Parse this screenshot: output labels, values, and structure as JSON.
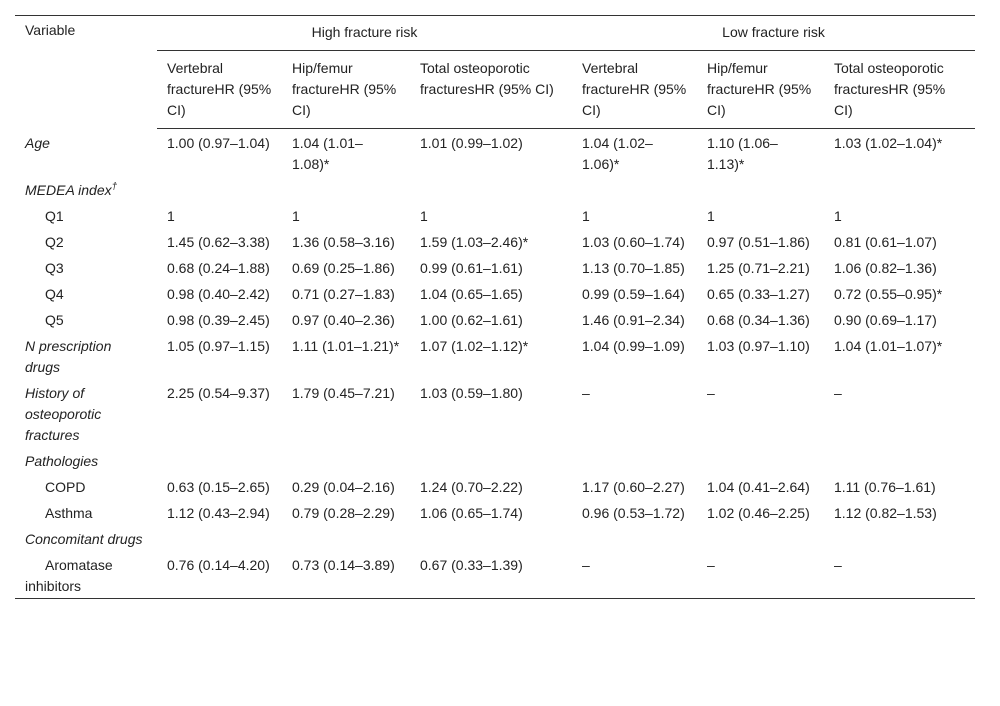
{
  "table": {
    "variable_header": "Variable",
    "groups": [
      "High fracture risk",
      "Low fracture risk"
    ],
    "subheaders": [
      "Vertebral fractureHR (95% CI)",
      "Hip/femur fractureHR (95% CI)",
      "Total osteoporotic fracturesHR (95% CI)",
      "Vertebral fractureHR (95% CI)",
      "Hip/femur fractureHR (95% CI)",
      "Total osteoporotic fracturesHR (95% CI)"
    ],
    "sections": [
      {
        "label": "Age",
        "values": [
          "1.00 (0.97–1.04)",
          "1.04 (1.01–1.08)*",
          "1.01 (0.99–1.02)",
          "1.04 (1.02–1.06)*",
          "1.10 (1.06–1.13)*",
          "1.03 (1.02–1.04)*"
        ]
      },
      {
        "label": "MEDEA index",
        "label_sup": "†",
        "rows": [
          {
            "label": "Q1",
            "values": [
              "1",
              "1",
              "1",
              "1",
              "1",
              "1"
            ]
          },
          {
            "label": "Q2",
            "values": [
              "1.45 (0.62–3.38)",
              "1.36 (0.58–3.16)",
              "1.59 (1.03–2.46)*",
              "1.03 (0.60–1.74)",
              "0.97 (0.51–1.86)",
              "0.81 (0.61–1.07)"
            ]
          },
          {
            "label": "Q3",
            "values": [
              "0.68 (0.24–1.88)",
              "0.69 (0.25–1.86)",
              "0.99 (0.61–1.61)",
              "1.13 (0.70–1.85)",
              "1.25 (0.71–2.21)",
              "1.06 (0.82–1.36)"
            ]
          },
          {
            "label": "Q4",
            "values": [
              "0.98 (0.40–2.42)",
              "0.71 (0.27–1.83)",
              "1.04 (0.65–1.65)",
              "0.99 (0.59–1.64)",
              "0.65 (0.33–1.27)",
              "0.72 (0.55–0.95)*"
            ]
          },
          {
            "label": "Q5",
            "values": [
              "0.98 (0.39–2.45)",
              "0.97 (0.40–2.36)",
              "1.00 (0.62–1.61)",
              "1.46 (0.91–2.34)",
              "0.68 (0.34–1.36)",
              "0.90 (0.69–1.17)"
            ]
          }
        ]
      },
      {
        "label": "N prescription drugs",
        "values": [
          "1.05 (0.97–1.15)",
          "1.11 (1.01–1.21)*",
          "1.07 (1.02–1.12)*",
          "1.04 (0.99–1.09)",
          "1.03 (0.97–1.10)",
          "1.04 (1.01–1.07)*"
        ]
      },
      {
        "label": "History of osteoporotic fractures",
        "values": [
          "2.25 (0.54–9.37)",
          "1.79 (0.45–7.21)",
          "1.03 (0.59–1.80)",
          "–",
          "–",
          "–"
        ]
      },
      {
        "label": "Pathologies",
        "rows": [
          {
            "label": "COPD",
            "values": [
              "0.63 (0.15–2.65)",
              "0.29 (0.04–2.16)",
              "1.24 (0.70–2.22)",
              "1.17 (0.60–2.27)",
              "1.04 (0.41–2.64)",
              "1.11 (0.76–1.61)"
            ]
          },
          {
            "label": "Asthma",
            "values": [
              "1.12 (0.43–2.94)",
              "0.79 (0.28–2.29)",
              "1.06 (0.65–1.74)",
              "0.96 (0.53–1.72)",
              "1.02 (0.46–2.25)",
              "1.12 (0.82–1.53)"
            ]
          }
        ]
      },
      {
        "label": "Concomitant drugs",
        "rows": [
          {
            "label": "Aromatase inhibitors",
            "values": [
              "0.76 (0.14–4.20)",
              "0.73 (0.14–3.89)",
              "0.67 (0.33–1.39)",
              "–",
              "–",
              "–"
            ]
          }
        ]
      }
    ]
  }
}
